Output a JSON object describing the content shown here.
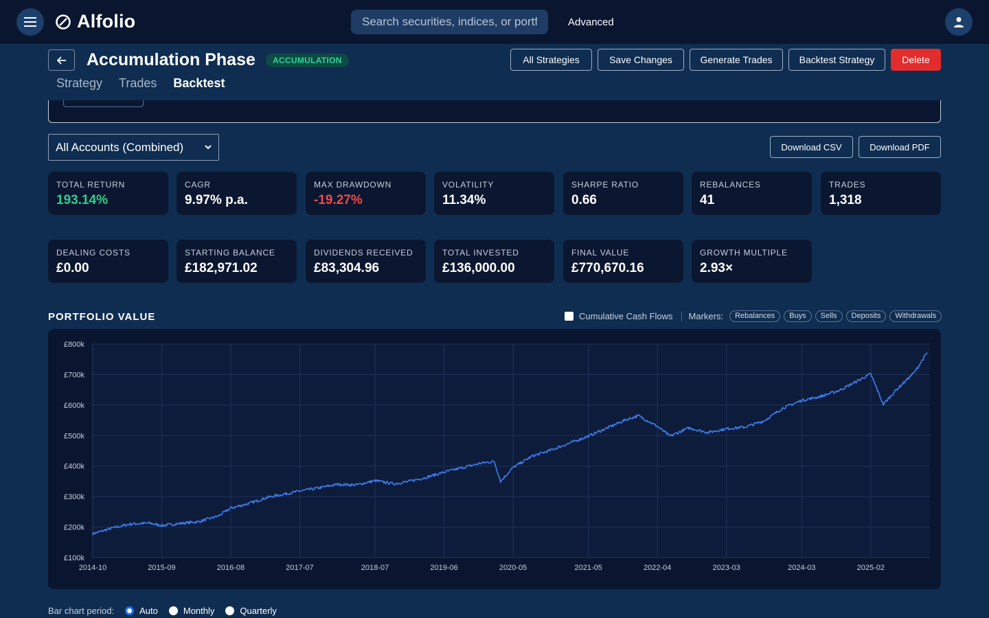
{
  "app": {
    "brand": "Alfolio",
    "search_placeholder": "Search securities, indices, or portfolios",
    "advanced_label": "Advanced"
  },
  "header": {
    "title": "Accumulation Phase",
    "badge": "ACCUMULATION",
    "buttons": {
      "all_strategies": "All Strategies",
      "save_changes": "Save Changes",
      "generate_trades": "Generate Trades",
      "backtest_strategy": "Backtest Strategy",
      "delete": "Delete"
    },
    "tabs": [
      "Strategy",
      "Trades",
      "Backtest"
    ],
    "active_tab": "Backtest"
  },
  "controls": {
    "account_select": "All Accounts (Combined)",
    "download_csv": "Download CSV",
    "download_pdf": "Download PDF"
  },
  "stats_row1": [
    {
      "label": "TOTAL RETURN",
      "value": "193.14%",
      "tone": "pos"
    },
    {
      "label": "CAGR",
      "value": "9.97% p.a.",
      "tone": ""
    },
    {
      "label": "MAX DRAWDOWN",
      "value": "-19.27%",
      "tone": "neg"
    },
    {
      "label": "VOLATILITY",
      "value": "11.34%",
      "tone": ""
    },
    {
      "label": "SHARPE RATIO",
      "value": "0.66",
      "tone": ""
    },
    {
      "label": "REBALANCES",
      "value": "41",
      "tone": ""
    },
    {
      "label": "TRADES",
      "value": "1,318",
      "tone": ""
    }
  ],
  "stats_row2": [
    {
      "label": "DEALING COSTS",
      "value": "£0.00",
      "tone": ""
    },
    {
      "label": "STARTING BALANCE",
      "value": "£182,971.02",
      "tone": ""
    },
    {
      "label": "DIVIDENDS RECEIVED",
      "value": "£83,304.96",
      "tone": ""
    },
    {
      "label": "TOTAL INVESTED",
      "value": "£136,000.00",
      "tone": ""
    },
    {
      "label": "FINAL VALUE",
      "value": "£770,670.16",
      "tone": ""
    },
    {
      "label": "GROWTH MULTIPLE",
      "value": "2.93×",
      "tone": ""
    }
  ],
  "chart_section": {
    "title": "PORTFOLIO VALUE",
    "cumulative_label": "Cumulative Cash Flows",
    "markers_label": "Markers:",
    "markers": [
      "Rebalances",
      "Buys",
      "Sells",
      "Deposits",
      "Withdrawals"
    ]
  },
  "chart_data": {
    "type": "line",
    "title": "PORTFOLIO VALUE",
    "y_tick_labels": [
      "£800k",
      "£700k",
      "£600k",
      "£500k",
      "£400k",
      "£300k",
      "£200k",
      "£100k"
    ],
    "y_ticks": [
      800000,
      700000,
      600000,
      500000,
      400000,
      300000,
      200000,
      100000
    ],
    "x_tick_labels": [
      "2014-10",
      "2015-09",
      "2016-08",
      "2017-07",
      "2018-07",
      "2019-06",
      "2020-05",
      "2021-05",
      "2022-04",
      "2023-03",
      "2024-03",
      "2025-02"
    ],
    "ylim": [
      100000,
      800000
    ],
    "grid": true,
    "line_color": "#3f7ef0",
    "series": [
      {
        "x": [
          "2014-10",
          "2015-01",
          "2015-04",
          "2015-07",
          "2015-09",
          "2015-12",
          "2016-03",
          "2016-06",
          "2016-08",
          "2016-11",
          "2017-02",
          "2017-05",
          "2017-07",
          "2017-10",
          "2018-01",
          "2018-04",
          "2018-07",
          "2018-10",
          "2018-12",
          "2019-03",
          "2019-06",
          "2019-09",
          "2019-12",
          "2020-02",
          "2020-03",
          "2020-05",
          "2020-08",
          "2020-11",
          "2021-02",
          "2021-05",
          "2021-08",
          "2021-11",
          "2022-01",
          "2022-04",
          "2022-06",
          "2022-09",
          "2022-12",
          "2023-03",
          "2023-06",
          "2023-09",
          "2023-12",
          "2024-03",
          "2024-06",
          "2024-09",
          "2024-12",
          "2025-02",
          "2025-04",
          "2025-06",
          "2025-09",
          "2025-11"
        ],
        "values": [
          178000,
          196000,
          210000,
          213000,
          205000,
          212000,
          218000,
          236000,
          262000,
          278000,
          298000,
          310000,
          318000,
          328000,
          340000,
          338000,
          352000,
          342000,
          348000,
          362000,
          380000,
          395000,
          410000,
          415000,
          350000,
          395000,
          432000,
          452000,
          475000,
          498000,
          525000,
          552000,
          565000,
          530000,
          498000,
          525000,
          510000,
          522000,
          528000,
          548000,
          590000,
          615000,
          628000,
          648000,
          680000,
          702000,
          602000,
          648000,
          708000,
          772000
        ]
      }
    ]
  },
  "period": {
    "label": "Bar chart period:",
    "options": [
      "Auto",
      "Monthly",
      "Quarterly"
    ],
    "selected": "Auto"
  }
}
